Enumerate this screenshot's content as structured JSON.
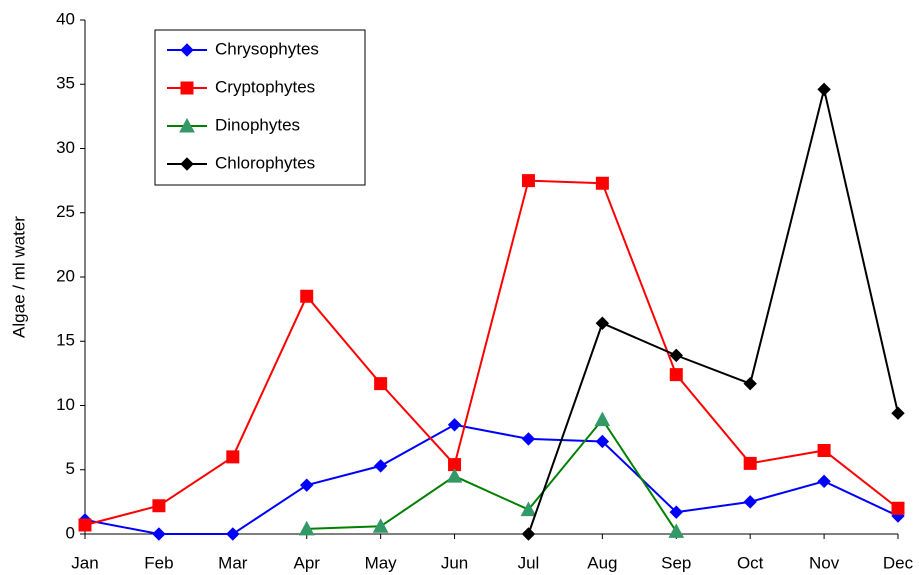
{
  "chart_data": {
    "type": "line",
    "y_label": "Algae / ml water",
    "categories": [
      "Jan",
      "Feb",
      "Mar",
      "Apr",
      "May",
      "Jun",
      "Jul",
      "Aug",
      "Sep",
      "Oct",
      "Nov",
      "Dec"
    ],
    "ylim": [
      0,
      40
    ],
    "yticks": [
      0,
      5,
      10,
      15,
      20,
      25,
      30,
      35,
      40
    ],
    "legend": "top-left",
    "series": [
      {
        "name": "Chrysophytes",
        "color": "#0000ff",
        "marker": "diamond",
        "values": [
          1.1,
          0,
          0,
          3.8,
          5.3,
          8.5,
          7.4,
          7.2,
          1.7,
          2.5,
          4.1,
          1.4
        ]
      },
      {
        "name": "Cryptophytes",
        "color": "#ff0000",
        "marker": "square",
        "values": [
          0.7,
          2.2,
          6.0,
          18.5,
          11.7,
          5.4,
          27.5,
          27.3,
          12.4,
          5.5,
          6.5,
          2.0
        ]
      },
      {
        "name": "Dinophytes",
        "color": "#339966",
        "lineColor": "#008000",
        "marker": "triangle",
        "values": [
          null,
          null,
          null,
          0.4,
          0.6,
          4.5,
          1.9,
          8.9,
          0.2,
          null,
          null,
          null
        ]
      },
      {
        "name": "Chlorophytes",
        "color": "#000000",
        "marker": "diamond",
        "values": [
          null,
          null,
          null,
          null,
          null,
          null,
          0,
          16.4,
          13.9,
          11.7,
          34.6,
          9.4
        ]
      }
    ]
  }
}
